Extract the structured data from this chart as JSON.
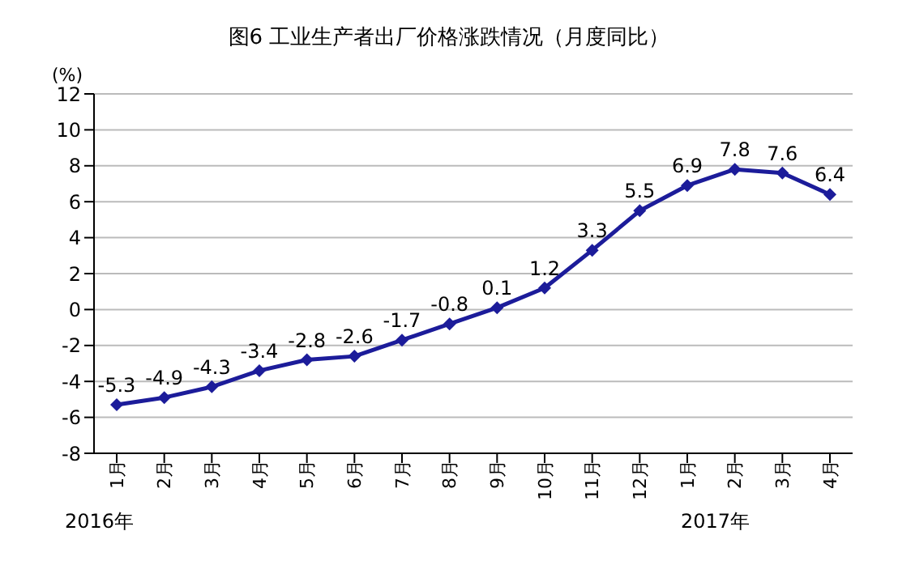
{
  "chart_data": {
    "type": "line",
    "title": "图6 工业生产者出厂价格涨跌情况（月度同比）",
    "ylabel": "(%)",
    "categories": [
      "1月",
      "2月",
      "3月",
      "4月",
      "5月",
      "6月",
      "7月",
      "8月",
      "9月",
      "10月",
      "11月",
      "12月",
      "1月",
      "2月",
      "3月",
      "4月"
    ],
    "series": [
      {
        "color": "#1c1c9a",
        "values": [
          -5.3,
          -4.9,
          -4.3,
          -3.4,
          -2.8,
          -2.6,
          -1.7,
          -0.8,
          0.1,
          1.2,
          3.3,
          5.5,
          6.9,
          7.8,
          7.6,
          6.4
        ]
      }
    ],
    "ylim": [
      -8,
      12
    ],
    "yticks": [
      -8,
      -6,
      -4,
      -2,
      0,
      2,
      4,
      6,
      8,
      10,
      12
    ],
    "grid": "y",
    "marker": "diamond",
    "line_style": "solid",
    "data_labels": true,
    "annotations": [
      "2016年",
      "2017年"
    ]
  }
}
